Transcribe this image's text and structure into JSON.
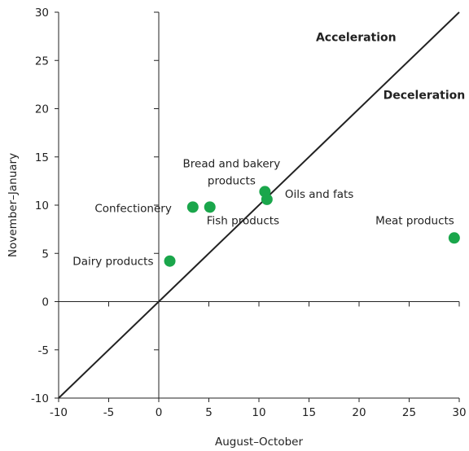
{
  "chart_data": {
    "type": "scatter",
    "title": "",
    "xlabel": "August–October",
    "ylabel": "November–January",
    "xlim": [
      -10,
      30
    ],
    "ylim": [
      -10,
      30
    ],
    "xticks": [
      -10,
      -5,
      0,
      5,
      10,
      15,
      20,
      25,
      30
    ],
    "yticks": [
      -10,
      -5,
      0,
      5,
      10,
      15,
      20,
      25,
      30
    ],
    "grid": false,
    "reference_line": "y = x",
    "point_color": "#1aa64b",
    "points": [
      {
        "label": "Dairy products",
        "x": 1.1,
        "y": 4.2
      },
      {
        "label": "Confectionery",
        "x": 3.4,
        "y": 9.8
      },
      {
        "label": "Fish products",
        "x": 5.1,
        "y": 9.8
      },
      {
        "label": "Bread and bakery products",
        "x": 10.6,
        "y": 11.4
      },
      {
        "label": "Oils and fats",
        "x": 10.8,
        "y": 10.6
      },
      {
        "label": "Meat products",
        "x": 29.5,
        "y": 6.6
      }
    ],
    "annotations": [
      {
        "text": "Acceleration",
        "x": 19.7,
        "y": 27.0
      },
      {
        "text": "Deceleration",
        "x": 26.5,
        "y": 21.0
      }
    ]
  }
}
